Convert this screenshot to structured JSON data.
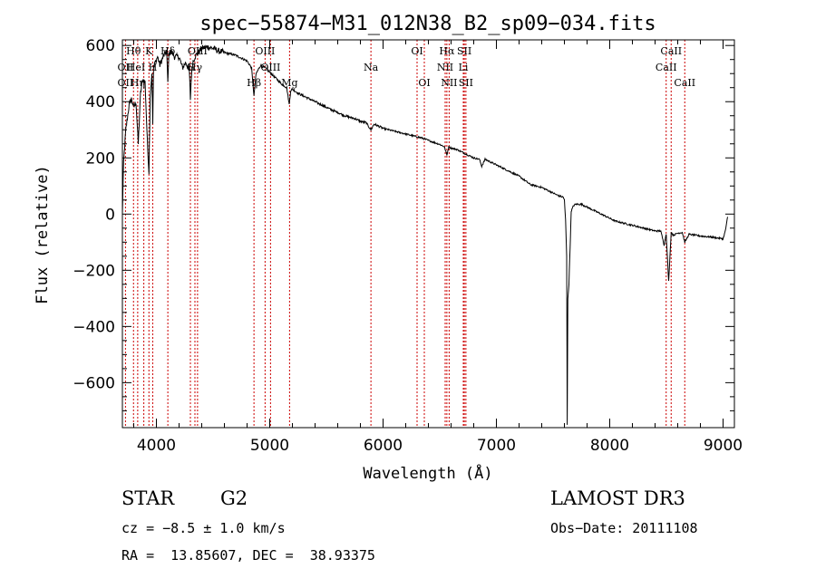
{
  "chart_data": {
    "type": "line",
    "title": "spec−55874−M31_012N38_B2_sp09−034.fits",
    "xlabel": "Wavelength (Å)",
    "ylabel": "Flux (relative)",
    "xlim": [
      3700,
      9100
    ],
    "ylim": [
      -760,
      620
    ],
    "xticks": [
      4000,
      5000,
      6000,
      7000,
      8000,
      9000
    ],
    "yticks": [
      -600,
      -400,
      -200,
      0,
      200,
      400,
      600
    ],
    "ytick_labels": [
      "−600",
      "−400",
      "−200",
      "0",
      "200",
      "400",
      "600"
    ],
    "series": [
      {
        "name": "spectrum",
        "x": [
          3700,
          3710,
          3720,
          3730,
          3740,
          3760,
          3780,
          3800,
          3820,
          3840,
          3860,
          3880,
          3900,
          3920,
          3934,
          3945,
          3960,
          3968,
          3975,
          3990,
          4010,
          4030,
          4060,
          4090,
          4101,
          4110,
          4130,
          4160,
          4200,
          4230,
          4260,
          4290,
          4300,
          4310,
          4320,
          4340,
          4360,
          4400,
          4450,
          4500,
          4550,
          4600,
          4650,
          4700,
          4750,
          4800,
          4840,
          4861,
          4880,
          4920,
          4960,
          5000,
          5050,
          5100,
          5150,
          5172,
          5185,
          5200,
          5250,
          5300,
          5350,
          5400,
          5450,
          5500,
          5550,
          5600,
          5650,
          5700,
          5750,
          5800,
          5850,
          5893,
          5920,
          5950,
          6000,
          6050,
          6100,
          6150,
          6200,
          6250,
          6300,
          6350,
          6400,
          6450,
          6500,
          6540,
          6563,
          6580,
          6600,
          6650,
          6700,
          6750,
          6800,
          6850,
          6870,
          6900,
          6950,
          7000,
          7050,
          7100,
          7150,
          7200,
          7250,
          7300,
          7350,
          7400,
          7450,
          7500,
          7550,
          7590,
          7600,
          7610,
          7620,
          7625,
          7630,
          7640,
          7650,
          7660,
          7670,
          7680,
          7700,
          7750,
          7800,
          7850,
          7900,
          7950,
          8000,
          8050,
          8100,
          8150,
          8200,
          8250,
          8300,
          8350,
          8400,
          8450,
          8480,
          8498,
          8520,
          8542,
          8560,
          8600,
          8640,
          8662,
          8700,
          8750,
          8800,
          8850,
          8900,
          8950,
          9000,
          9020,
          9040
        ],
        "y": [
          0,
          180,
          240,
          300,
          330,
          390,
          410,
          380,
          400,
          250,
          430,
          480,
          470,
          260,
          150,
          420,
          500,
          320,
          520,
          540,
          560,
          530,
          560,
          580,
          470,
          570,
          580,
          560,
          560,
          520,
          540,
          510,
          410,
          500,
          540,
          560,
          570,
          590,
          595,
          590,
          580,
          575,
          570,
          565,
          555,
          545,
          520,
          420,
          500,
          530,
          520,
          505,
          485,
          465,
          450,
          390,
          440,
          445,
          430,
          420,
          410,
          400,
          390,
          380,
          370,
          362,
          352,
          345,
          340,
          330,
          325,
          300,
          320,
          315,
          305,
          300,
          295,
          290,
          285,
          280,
          275,
          270,
          262,
          255,
          248,
          240,
          210,
          240,
          235,
          230,
          220,
          210,
          200,
          195,
          170,
          195,
          185,
          175,
          165,
          155,
          145,
          135,
          120,
          105,
          100,
          95,
          85,
          75,
          65,
          60,
          50,
          -20,
          -150,
          -750,
          -300,
          -250,
          -120,
          10,
          20,
          30,
          35,
          35,
          25,
          15,
          5,
          -5,
          -15,
          -25,
          -30,
          -35,
          -40,
          -45,
          -50,
          -55,
          -60,
          -60,
          -110,
          -70,
          -240,
          -65,
          -75,
          -68,
          -65,
          -100,
          -72,
          -75,
          -78,
          -80,
          -82,
          -85,
          -88,
          -60,
          -10
        ]
      }
    ],
    "spectral_lines": [
      {
        "label": "Hθ",
        "wavelength": 3798,
        "row": 1
      },
      {
        "label": "OII",
        "wavelength": 3727,
        "row": 2
      },
      {
        "label": "HeI",
        "wavelength": 3820,
        "row": 2
      },
      {
        "label": "OII",
        "wavelength": 3727,
        "row": 3
      },
      {
        "label": "Hη",
        "wavelength": 3835,
        "row": 3
      },
      {
        "label": "K",
        "wavelength": 3934,
        "row": 1
      },
      {
        "label": "H",
        "wavelength": 3968,
        "row": 2
      },
      {
        "label": "Hδ",
        "wavelength": 4101,
        "row": 1
      },
      {
        "label": "G",
        "wavelength": 4300,
        "row": 2
      },
      {
        "label": "OIII",
        "wavelength": 4363,
        "row": 1
      },
      {
        "label": "Hγ",
        "wavelength": 4340,
        "row": 2
      },
      {
        "label": "Hβ",
        "wavelength": 4861,
        "row": 3
      },
      {
        "label": "OIII",
        "wavelength": 4959,
        "row": 1
      },
      {
        "label": "OIII",
        "wavelength": 5007,
        "row": 2
      },
      {
        "label": "Mg",
        "wavelength": 5175,
        "row": 3
      },
      {
        "label": "Na",
        "wavelength": 5893,
        "row": 2
      },
      {
        "label": "OI",
        "wavelength": 6300,
        "row": 1
      },
      {
        "label": "OI",
        "wavelength": 6364,
        "row": 3
      },
      {
        "label": "Hα",
        "wavelength": 6563,
        "row": 1
      },
      {
        "label": "NII",
        "wavelength": 6548,
        "row": 2
      },
      {
        "label": "NII",
        "wavelength": 6583,
        "row": 3
      },
      {
        "label": "SII",
        "wavelength": 6717,
        "row": 1
      },
      {
        "label": "Li",
        "wavelength": 6708,
        "row": 2
      },
      {
        "label": "SII",
        "wavelength": 6731,
        "row": 3
      },
      {
        "label": "CaII",
        "wavelength": 8542,
        "row": 1
      },
      {
        "label": "CaII",
        "wavelength": 8498,
        "row": 2
      },
      {
        "label": "CaII",
        "wavelength": 8662,
        "row": 3
      }
    ],
    "line_markers": [
      3727,
      3798,
      3835,
      3889,
      3934,
      3968,
      4101,
      4300,
      4340,
      4363,
      4861,
      4959,
      5007,
      5175,
      5893,
      6300,
      6364,
      6548,
      6563,
      6583,
      6708,
      6717,
      6731,
      8498,
      8542,
      8662
    ],
    "colors": {
      "spectrum": "#000000",
      "markers": "#cc0000",
      "axes": "#000000"
    }
  },
  "footer": {
    "object_class": "STAR",
    "subclass": "G2",
    "survey": "LAMOST DR3",
    "redshift": "cz = −8.5 ± 1.0 km/s",
    "obs_date": "Obs−Date: 20111108",
    "coords": "RA =  13.85607, DEC =  38.93375"
  }
}
